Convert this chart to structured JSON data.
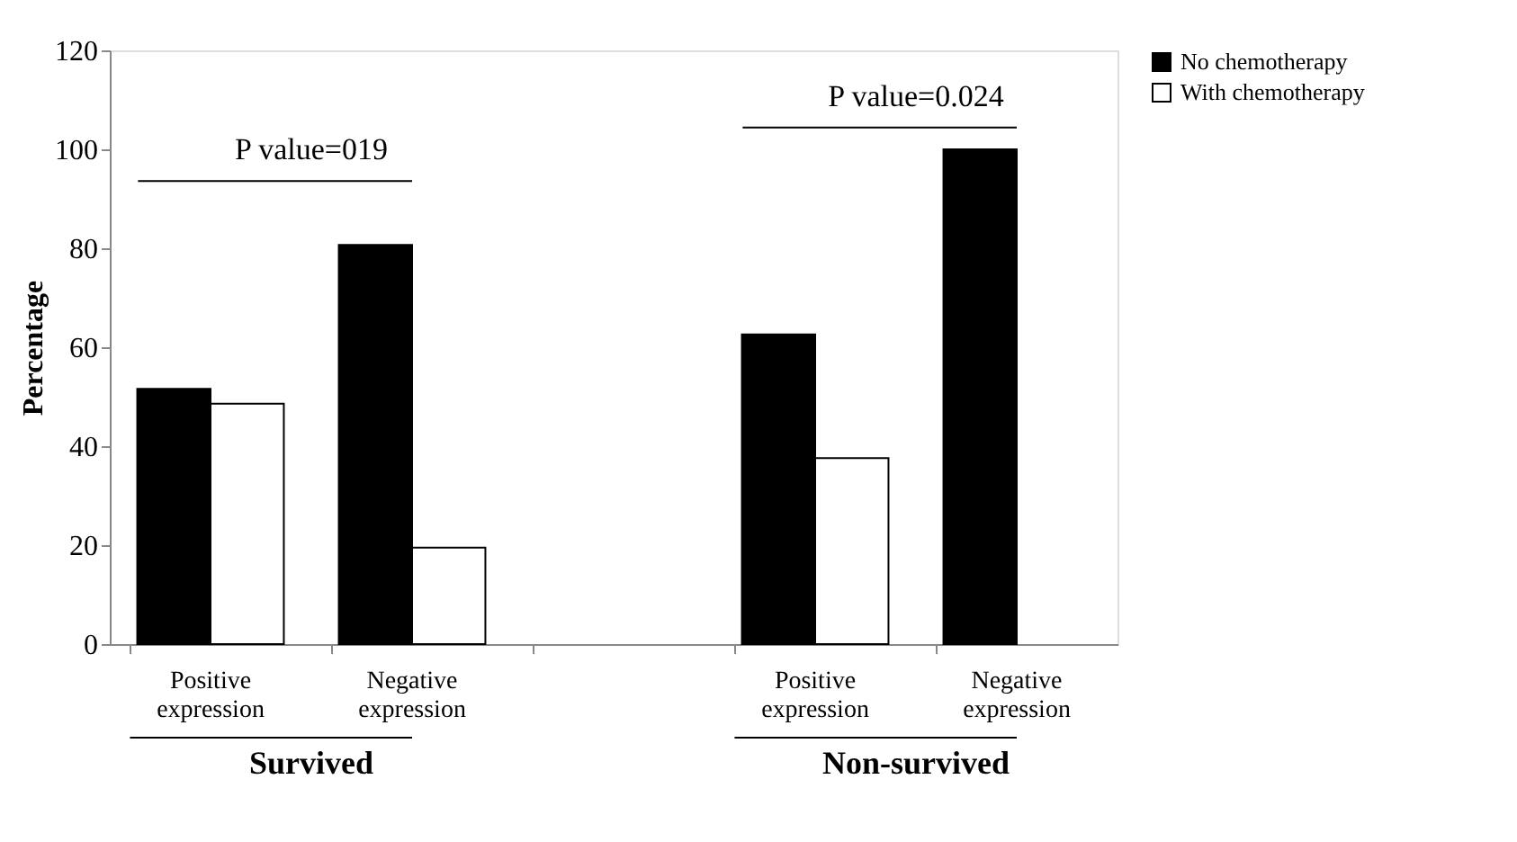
{
  "chart_data": {
    "type": "bar",
    "ylabel": "Percentage",
    "categories": [
      "Positive expression",
      "Negative expression",
      null,
      "Positive expression",
      "Negative expression"
    ],
    "series": [
      {
        "name": "No  chemotherapy",
        "color": "#000000",
        "values": [
          51.6,
          80.7,
          null,
          62.6,
          100
        ]
      },
      {
        "name": "With  chemotherapy",
        "color": "#ffffff",
        "values": [
          48.6,
          19.5,
          null,
          37.6,
          null
        ]
      }
    ],
    "ylim": [
      0,
      120
    ],
    "yticks": [
      0,
      20,
      40,
      60,
      80,
      100,
      120
    ],
    "grid": false,
    "legend": "right",
    "annotations": [
      "P value=019",
      "P value=0.024",
      "Survived",
      "Non-survived"
    ]
  }
}
